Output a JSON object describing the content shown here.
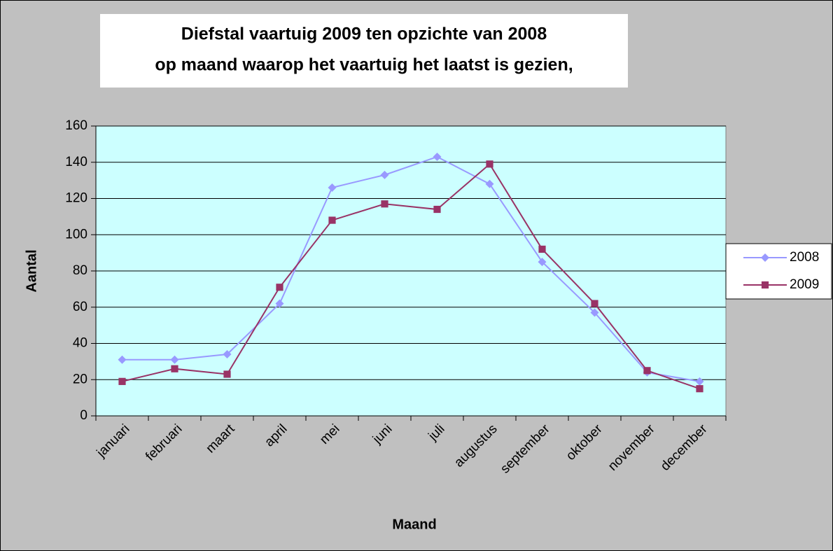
{
  "chart_data": {
    "type": "line",
    "title": [
      "Diefstal vaartuig 2009 ten opzichte van 2008",
      "op maand waarop het vaartuig het laatst is gezien,"
    ],
    "x_label": "Maand",
    "y_label": "Aantal",
    "categories": [
      "januari",
      "februari",
      "maart",
      "april",
      "mei",
      "juni",
      "juli",
      "augustus",
      "september",
      "oktober",
      "november",
      "december"
    ],
    "series": [
      {
        "name": "2008",
        "color": "#9999ff",
        "marker": "diamond",
        "values": [
          31,
          31,
          34,
          62,
          126,
          133,
          143,
          128,
          85,
          57,
          24,
          19
        ]
      },
      {
        "name": "2009",
        "color": "#993366",
        "marker": "square",
        "values": [
          19,
          26,
          23,
          71,
          108,
          117,
          114,
          139,
          92,
          62,
          25,
          15
        ]
      }
    ],
    "ylim": [
      0,
      160
    ],
    "yticks": [
      0,
      20,
      40,
      60,
      80,
      100,
      120,
      140,
      160
    ],
    "grid": true,
    "legend": "right"
  }
}
